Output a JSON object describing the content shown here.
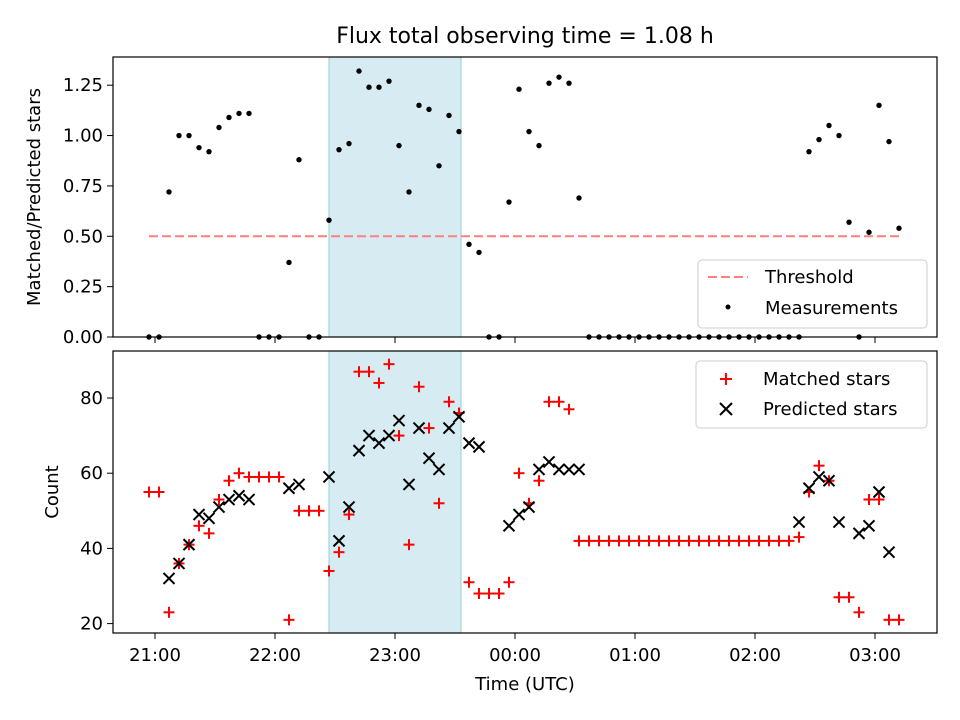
{
  "chart_data": [
    {
      "type": "scatter",
      "title": "Flux total observing time = 1.08 h",
      "xlabel": "",
      "ylabel": "Matched/Predicted stars",
      "ylim": [
        0,
        1.39
      ],
      "yticks": [
        "0.00",
        "0.25",
        "0.50",
        "0.75",
        "1.00",
        "1.25"
      ],
      "xticks": [
        "21:00",
        "22:00",
        "23:00",
        "00:00",
        "01:00",
        "02:00",
        "03:00"
      ],
      "shaded_region": [
        "22:27",
        "23:33"
      ],
      "legend_position": "lower right",
      "threshold": {
        "name": "Threshold",
        "value": 0.5,
        "x_start": "21:00",
        "x_end": "03:13",
        "color": "#ff7f7f"
      },
      "series": [
        {
          "name": "Measurements",
          "color": "#000000",
          "marker": "dot",
          "x": [
            "20:57",
            "21:02",
            "21:07",
            "21:12",
            "21:17",
            "21:22",
            "21:27",
            "21:32",
            "21:37",
            "21:42",
            "21:47",
            "21:52",
            "21:57",
            "22:02",
            "22:07",
            "22:12",
            "22:17",
            "22:22",
            "22:27",
            "22:32",
            "22:37",
            "22:42",
            "22:47",
            "22:52",
            "22:57",
            "23:02",
            "23:07",
            "23:12",
            "23:17",
            "23:22",
            "23:27",
            "23:32",
            "23:37",
            "23:42",
            "23:47",
            "23:52",
            "23:57",
            "00:02",
            "00:07",
            "00:12",
            "00:17",
            "00:22",
            "00:27",
            "00:32",
            "00:37",
            "00:42",
            "00:47",
            "00:52",
            "00:57",
            "01:02",
            "01:07",
            "01:12",
            "01:17",
            "01:22",
            "01:27",
            "01:32",
            "01:37",
            "01:42",
            "01:47",
            "01:52",
            "01:57",
            "02:02",
            "02:07",
            "02:12",
            "02:17",
            "02:22",
            "02:27",
            "02:32",
            "02:37",
            "02:42",
            "02:47",
            "02:52",
            "02:57",
            "03:02",
            "03:07",
            "03:12"
          ],
          "y": [
            0,
            0,
            0.72,
            1.0,
            1.0,
            0.94,
            0.92,
            1.04,
            1.09,
            1.11,
            1.11,
            0,
            0,
            0,
            0.37,
            0.88,
            0,
            0,
            0.58,
            0.93,
            0.96,
            1.32,
            1.24,
            1.24,
            1.27,
            0.95,
            0.72,
            1.15,
            1.13,
            0.85,
            1.1,
            1.02,
            0.46,
            0.42,
            0,
            0,
            0.67,
            1.23,
            1.02,
            0.95,
            1.26,
            1.29,
            1.26,
            0.69,
            0,
            0,
            0,
            0,
            0,
            0,
            0,
            0,
            0,
            0,
            0,
            0,
            0,
            0,
            0,
            0,
            0,
            0,
            0,
            0,
            0,
            0,
            0.92,
            0.98,
            1.05,
            1.0,
            0.57,
            0,
            0.52,
            1.15,
            0.97,
            0.54
          ]
        }
      ]
    },
    {
      "type": "scatter",
      "title": "",
      "xlabel": "Time (UTC)",
      "ylabel": "Count",
      "ylim": [
        17.5,
        92.5
      ],
      "yticks": [
        "20",
        "40",
        "60",
        "80"
      ],
      "xticks": [
        "21:00",
        "22:00",
        "23:00",
        "00:00",
        "01:00",
        "02:00",
        "03:00"
      ],
      "shaded_region": [
        "22:27",
        "23:33"
      ],
      "legend_position": "upper right",
      "series": [
        {
          "name": "Matched stars",
          "color": "#ff0000",
          "marker": "plus",
          "x": [
            "20:57",
            "21:02",
            "21:07",
            "21:12",
            "21:17",
            "21:22",
            "21:27",
            "21:32",
            "21:37",
            "21:42",
            "21:47",
            "21:52",
            "21:57",
            "22:02",
            "22:07",
            "22:12",
            "22:17",
            "22:22",
            "22:27",
            "22:32",
            "22:37",
            "22:42",
            "22:47",
            "22:52",
            "22:57",
            "23:02",
            "23:07",
            "23:12",
            "23:17",
            "23:22",
            "23:27",
            "23:32",
            "23:37",
            "23:42",
            "23:47",
            "23:52",
            "23:57",
            "00:02",
            "00:07",
            "00:12",
            "00:17",
            "00:22",
            "00:27",
            "00:32",
            "00:37",
            "00:42",
            "00:47",
            "00:52",
            "00:57",
            "01:02",
            "01:07",
            "01:12",
            "01:17",
            "01:22",
            "01:27",
            "01:32",
            "01:37",
            "01:42",
            "01:47",
            "01:52",
            "01:57",
            "02:02",
            "02:07",
            "02:12",
            "02:17",
            "02:22",
            "02:27",
            "02:32",
            "02:37",
            "02:42",
            "02:47",
            "02:52",
            "02:57",
            "03:02",
            "03:07",
            "03:12"
          ],
          "y": [
            55,
            55,
            23,
            36,
            41,
            46,
            44,
            53,
            58,
            60,
            59,
            59,
            59,
            59,
            21,
            50,
            50,
            50,
            34,
            39,
            49,
            87,
            87,
            84,
            89,
            70,
            41,
            83,
            72,
            52,
            79,
            76,
            31,
            28,
            28,
            28,
            31,
            60,
            52,
            58,
            79,
            79,
            77,
            42,
            42,
            42,
            42,
            42,
            42,
            42,
            42,
            42,
            42,
            42,
            42,
            42,
            42,
            42,
            42,
            42,
            42,
            42,
            42,
            42,
            42,
            43,
            55,
            62,
            58,
            27,
            27,
            23,
            53,
            53,
            21,
            21
          ]
        },
        {
          "name": "Predicted stars",
          "color": "#000000",
          "marker": "x",
          "x": [
            "21:07",
            "21:12",
            "21:17",
            "21:22",
            "21:27",
            "21:32",
            "21:37",
            "21:42",
            "21:47",
            "22:07",
            "22:12",
            "22:27",
            "22:32",
            "22:37",
            "22:42",
            "22:47",
            "22:52",
            "22:57",
            "23:02",
            "23:07",
            "23:12",
            "23:17",
            "23:22",
            "23:27",
            "23:32",
            "23:37",
            "23:42",
            "23:57",
            "00:02",
            "00:07",
            "00:12",
            "00:17",
            "00:22",
            "00:27",
            "00:32",
            "02:22",
            "02:27",
            "02:32",
            "02:37",
            "02:42",
            "02:52",
            "02:57",
            "03:02",
            "03:07"
          ],
          "y": [
            32,
            36,
            41,
            49,
            48,
            51,
            53,
            54,
            53,
            56,
            57,
            59,
            42,
            51,
            66,
            70,
            68,
            70,
            74,
            57,
            72,
            64,
            61,
            72,
            75,
            68,
            67,
            46,
            49,
            51,
            61,
            63,
            61,
            61,
            61,
            47,
            56,
            59,
            58,
            47,
            44,
            46,
            55,
            39
          ]
        }
      ]
    }
  ]
}
